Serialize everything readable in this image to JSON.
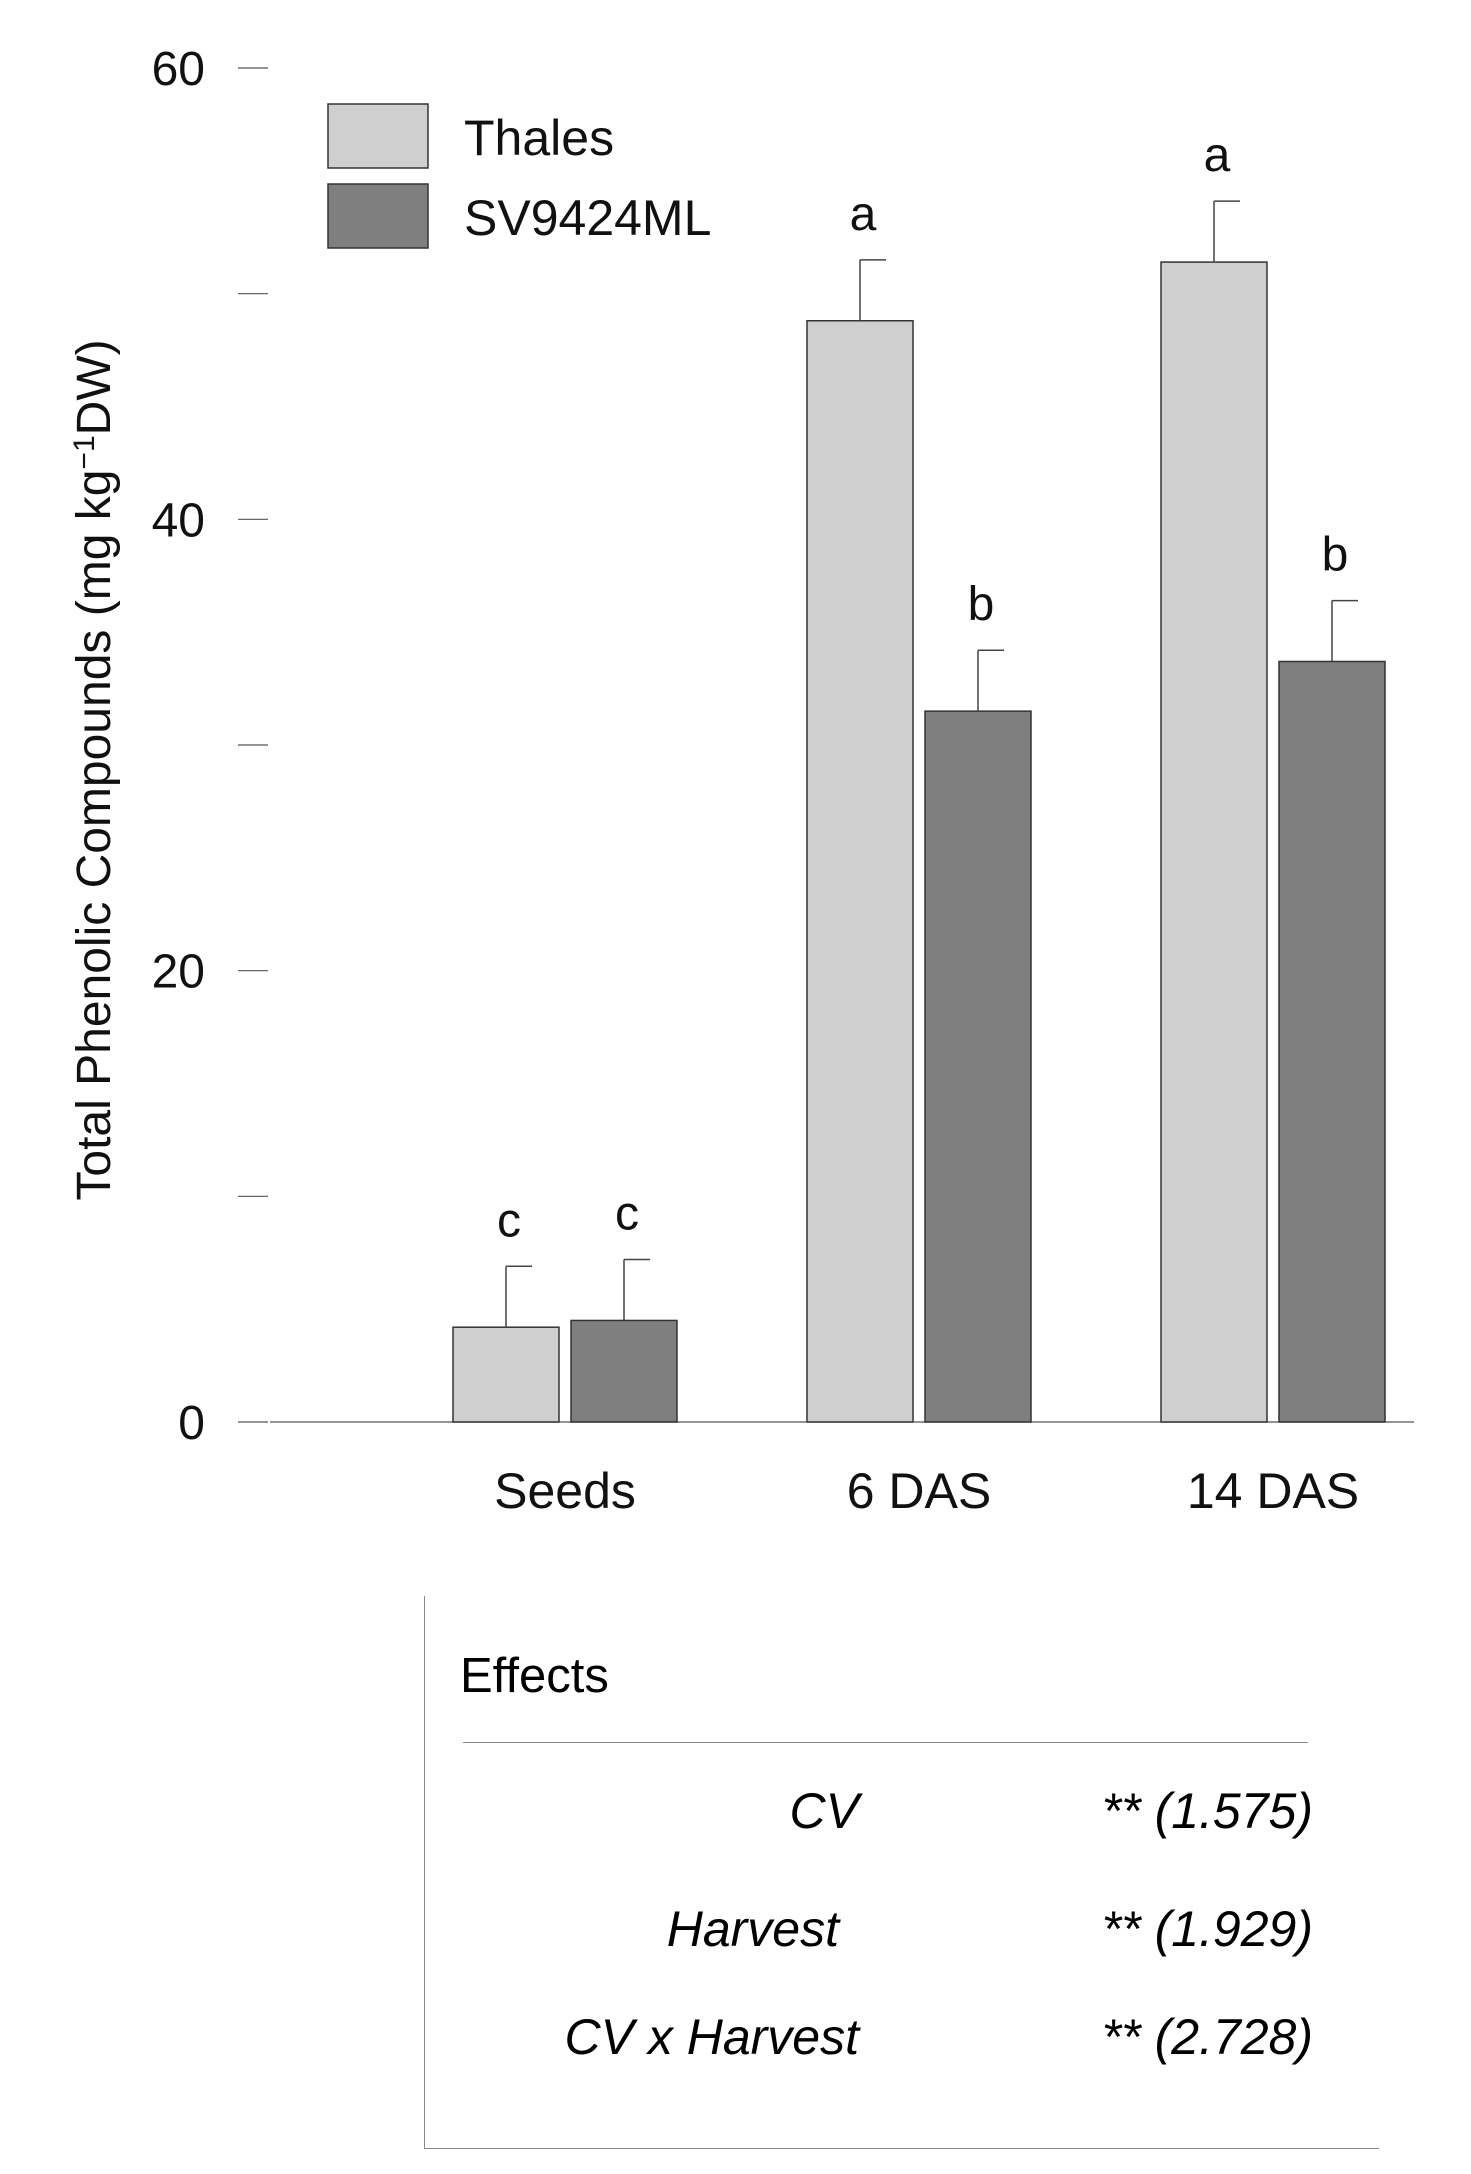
{
  "chart_data": {
    "type": "bar",
    "ylabel_main": "Total Phenolic Compounds  (mg kg",
    "ylabel_sup": "−1",
    "ylabel_tail": "DW)",
    "ylim": [
      0,
      60
    ],
    "yticks_labeled": [
      "0",
      "20",
      "40",
      "60"
    ],
    "ytick_values": [
      0,
      10,
      20,
      30,
      40,
      50,
      60
    ],
    "categories": [
      "Seeds",
      "6 DAS",
      "14 DAS"
    ],
    "legend_position": "top-left",
    "series": [
      {
        "name": "Thales",
        "color": "#cfcfcf",
        "values": [
          4.2,
          48.8,
          51.4
        ],
        "errors": [
          2.7,
          2.7,
          2.7
        ],
        "letters": [
          "c",
          "a",
          "a"
        ]
      },
      {
        "name": "SV9424ML",
        "color": "#7f7f7f",
        "values": [
          4.5,
          31.5,
          33.7
        ],
        "errors": [
          2.7,
          2.7,
          2.7
        ],
        "letters": [
          "c",
          "b",
          "b"
        ]
      }
    ]
  },
  "effects": {
    "title": "Effects",
    "rows": [
      {
        "name": "CV",
        "value": "** (1.575)"
      },
      {
        "name": "Harvest",
        "value": "** (1.929)"
      },
      {
        "name": "CV x Harvest",
        "value": "** (2.728)"
      }
    ]
  }
}
